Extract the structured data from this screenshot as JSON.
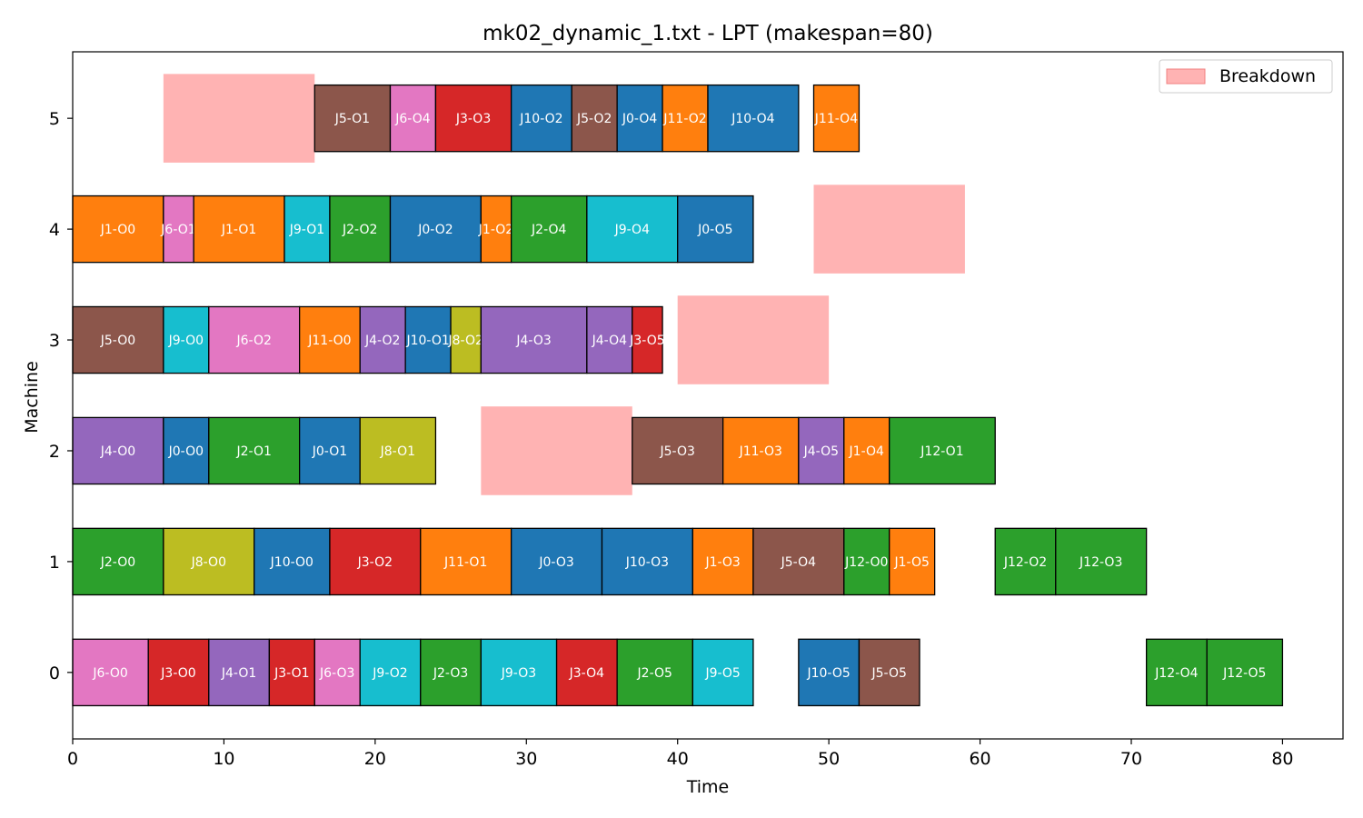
{
  "chart_data": {
    "type": "gantt",
    "title": "mk02_dynamic_1.txt - LPT (makespan=80)",
    "xlabel": "Time",
    "ylabel": "Machine",
    "xlim": [
      0,
      84
    ],
    "ylim": [
      -0.6,
      5.6
    ],
    "xticks": [
      0,
      10,
      20,
      30,
      40,
      50,
      60,
      70,
      80
    ],
    "yticks": [
      0,
      1,
      2,
      3,
      4,
      5
    ],
    "legend": {
      "label": "Breakdown",
      "position": "top-right",
      "color": "#ffb3b3",
      "edge": "#f08080"
    },
    "colors": {
      "J0": "#1f77b4",
      "J1": "#ff7f0e",
      "J2": "#2ca02c",
      "J3": "#d62728",
      "J4": "#9467bd",
      "J5": "#8c564b",
      "J6": "#e377c2",
      "J8": "#bcbd22",
      "J9": "#17becf",
      "J10": "#1f77b4",
      "J11": "#ff7f0e",
      "J12": "#2ca02c"
    },
    "breakdowns": [
      {
        "machine": 5,
        "start": 6,
        "end": 16
      },
      {
        "machine": 4,
        "start": 49,
        "end": 59
      },
      {
        "machine": 3,
        "start": 40,
        "end": 50
      },
      {
        "machine": 2,
        "start": 27,
        "end": 37
      }
    ],
    "operations": [
      {
        "machine": 5,
        "job": "J5",
        "label": "J5-O1",
        "start": 16,
        "end": 21
      },
      {
        "machine": 5,
        "job": "J6",
        "label": "J6-O4",
        "start": 21,
        "end": 24
      },
      {
        "machine": 5,
        "job": "J3",
        "label": "J3-O3",
        "start": 24,
        "end": 29
      },
      {
        "machine": 5,
        "job": "J10",
        "label": "J10-O2",
        "start": 29,
        "end": 33
      },
      {
        "machine": 5,
        "job": "J5",
        "label": "J5-O2",
        "start": 33,
        "end": 36
      },
      {
        "machine": 5,
        "job": "J0",
        "label": "J0-O4",
        "start": 36,
        "end": 39
      },
      {
        "machine": 5,
        "job": "J11",
        "label": "J11-O2",
        "start": 39,
        "end": 42
      },
      {
        "machine": 5,
        "job": "J10",
        "label": "J10-O4",
        "start": 42,
        "end": 48
      },
      {
        "machine": 5,
        "job": "J11",
        "label": "J11-O4",
        "start": 49,
        "end": 52
      },
      {
        "machine": 4,
        "job": "J1",
        "label": "J1-O0",
        "start": 0,
        "end": 6
      },
      {
        "machine": 4,
        "job": "J6",
        "label": "J6-O1",
        "start": 6,
        "end": 8
      },
      {
        "machine": 4,
        "job": "J1",
        "label": "J1-O1",
        "start": 8,
        "end": 14
      },
      {
        "machine": 4,
        "job": "J9",
        "label": "J9-O1",
        "start": 14,
        "end": 17
      },
      {
        "machine": 4,
        "job": "J2",
        "label": "J2-O2",
        "start": 17,
        "end": 21
      },
      {
        "machine": 4,
        "job": "J0",
        "label": "J0-O2",
        "start": 21,
        "end": 27
      },
      {
        "machine": 4,
        "job": "J1",
        "label": "J1-O2",
        "start": 27,
        "end": 29
      },
      {
        "machine": 4,
        "job": "J2",
        "label": "J2-O4",
        "start": 29,
        "end": 34
      },
      {
        "machine": 4,
        "job": "J9",
        "label": "J9-O4",
        "start": 34,
        "end": 40
      },
      {
        "machine": 4,
        "job": "J0",
        "label": "J0-O5",
        "start": 40,
        "end": 45
      },
      {
        "machine": 3,
        "job": "J5",
        "label": "J5-O0",
        "start": 0,
        "end": 6
      },
      {
        "machine": 3,
        "job": "J9",
        "label": "J9-O0",
        "start": 6,
        "end": 9
      },
      {
        "machine": 3,
        "job": "J6",
        "label": "J6-O2",
        "start": 9,
        "end": 15
      },
      {
        "machine": 3,
        "job": "J11",
        "label": "J11-O0",
        "start": 15,
        "end": 19
      },
      {
        "machine": 3,
        "job": "J4",
        "label": "J4-O2",
        "start": 19,
        "end": 22
      },
      {
        "machine": 3,
        "job": "J10",
        "label": "J10-O1",
        "start": 22,
        "end": 25
      },
      {
        "machine": 3,
        "job": "J8",
        "label": "J8-O2",
        "start": 25,
        "end": 27
      },
      {
        "machine": 3,
        "job": "J4",
        "label": "J4-O3",
        "start": 27,
        "end": 34
      },
      {
        "machine": 3,
        "job": "J4",
        "label": "J4-O4",
        "start": 34,
        "end": 37
      },
      {
        "machine": 3,
        "job": "J3",
        "label": "J3-O5",
        "start": 37,
        "end": 39
      },
      {
        "machine": 2,
        "job": "J4",
        "label": "J4-O0",
        "start": 0,
        "end": 6
      },
      {
        "machine": 2,
        "job": "J0",
        "label": "J0-O0",
        "start": 6,
        "end": 9
      },
      {
        "machine": 2,
        "job": "J2",
        "label": "J2-O1",
        "start": 9,
        "end": 15
      },
      {
        "machine": 2,
        "job": "J0",
        "label": "J0-O1",
        "start": 15,
        "end": 19
      },
      {
        "machine": 2,
        "job": "J8",
        "label": "J8-O1",
        "start": 19,
        "end": 24
      },
      {
        "machine": 2,
        "job": "J5",
        "label": "J5-O3",
        "start": 37,
        "end": 43
      },
      {
        "machine": 2,
        "job": "J11",
        "label": "J11-O3",
        "start": 43,
        "end": 48
      },
      {
        "machine": 2,
        "job": "J4",
        "label": "J4-O5",
        "start": 48,
        "end": 51
      },
      {
        "machine": 2,
        "job": "J1",
        "label": "J1-O4",
        "start": 51,
        "end": 54
      },
      {
        "machine": 2,
        "job": "J12",
        "label": "J12-O1",
        "start": 54,
        "end": 61
      },
      {
        "machine": 1,
        "job": "J2",
        "label": "J2-O0",
        "start": 0,
        "end": 6
      },
      {
        "machine": 1,
        "job": "J8",
        "label": "J8-O0",
        "start": 6,
        "end": 12
      },
      {
        "machine": 1,
        "job": "J10",
        "label": "J10-O0",
        "start": 12,
        "end": 17
      },
      {
        "machine": 1,
        "job": "J3",
        "label": "J3-O2",
        "start": 17,
        "end": 23
      },
      {
        "machine": 1,
        "job": "J11",
        "label": "J11-O1",
        "start": 23,
        "end": 29
      },
      {
        "machine": 1,
        "job": "J0",
        "label": "J0-O3",
        "start": 29,
        "end": 35
      },
      {
        "machine": 1,
        "job": "J10",
        "label": "J10-O3",
        "start": 35,
        "end": 41
      },
      {
        "machine": 1,
        "job": "J1",
        "label": "J1-O3",
        "start": 41,
        "end": 45
      },
      {
        "machine": 1,
        "job": "J5",
        "label": "J5-O4",
        "start": 45,
        "end": 51
      },
      {
        "machine": 1,
        "job": "J12",
        "label": "J12-O0",
        "start": 51,
        "end": 54
      },
      {
        "machine": 1,
        "job": "J1",
        "label": "J1-O5",
        "start": 54,
        "end": 57
      },
      {
        "machine": 1,
        "job": "J12",
        "label": "J12-O2",
        "start": 61,
        "end": 65
      },
      {
        "machine": 1,
        "job": "J12",
        "label": "J12-O3",
        "start": 65,
        "end": 71
      },
      {
        "machine": 0,
        "job": "J6",
        "label": "J6-O0",
        "start": 0,
        "end": 5
      },
      {
        "machine": 0,
        "job": "J3",
        "label": "J3-O0",
        "start": 5,
        "end": 9
      },
      {
        "machine": 0,
        "job": "J4",
        "label": "J4-O1",
        "start": 9,
        "end": 13
      },
      {
        "machine": 0,
        "job": "J3",
        "label": "J3-O1",
        "start": 13,
        "end": 16
      },
      {
        "machine": 0,
        "job": "J6",
        "label": "J6-O3",
        "start": 16,
        "end": 19
      },
      {
        "machine": 0,
        "job": "J9",
        "label": "J9-O2",
        "start": 19,
        "end": 23
      },
      {
        "machine": 0,
        "job": "J2",
        "label": "J2-O3",
        "start": 23,
        "end": 27
      },
      {
        "machine": 0,
        "job": "J9",
        "label": "J9-O3",
        "start": 27,
        "end": 32
      },
      {
        "machine": 0,
        "job": "J3",
        "label": "J3-O4",
        "start": 32,
        "end": 36
      },
      {
        "machine": 0,
        "job": "J2",
        "label": "J2-O5",
        "start": 36,
        "end": 41
      },
      {
        "machine": 0,
        "job": "J9",
        "label": "J9-O5",
        "start": 41,
        "end": 45
      },
      {
        "machine": 0,
        "job": "J10",
        "label": "J10-O5",
        "start": 48,
        "end": 52
      },
      {
        "machine": 0,
        "job": "J5",
        "label": "J5-O5",
        "start": 52,
        "end": 56
      },
      {
        "machine": 0,
        "job": "J12",
        "label": "J12-O4",
        "start": 71,
        "end": 75
      },
      {
        "machine": 0,
        "job": "J12",
        "label": "J12-O5",
        "start": 75,
        "end": 80
      }
    ]
  }
}
